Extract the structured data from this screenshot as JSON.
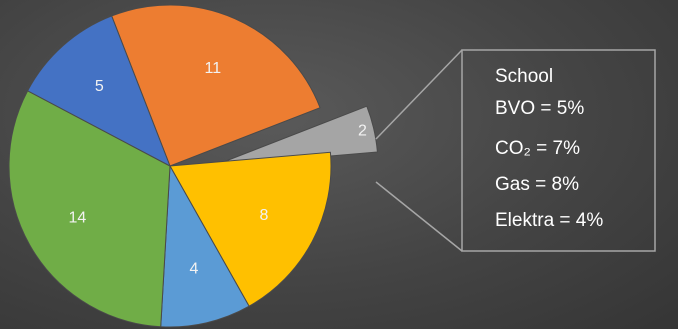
{
  "chart_data": {
    "type": "pie",
    "slices": [
      {
        "value": 11,
        "label": "11",
        "color": "#ED7D31"
      },
      {
        "value": 2,
        "label": "2",
        "color": "#A5A5A5",
        "exploded": true
      },
      {
        "value": 8,
        "label": "8",
        "color": "#FFC000"
      },
      {
        "value": 4,
        "label": "4",
        "color": "#5B9BD5"
      },
      {
        "value": 14,
        "label": "14",
        "color": "#70AD47"
      },
      {
        "value": 5,
        "label": "5",
        "color": "#4472C4"
      }
    ],
    "title": "",
    "legend": "none"
  },
  "callout": {
    "lines": [
      "School",
      "BVO = 5%",
      "CO₂ = 7%",
      "Gas = 8%",
      "Elektra = 4%"
    ]
  },
  "colors": {
    "background": "#444444",
    "callout_border": "#a6a6a6"
  }
}
